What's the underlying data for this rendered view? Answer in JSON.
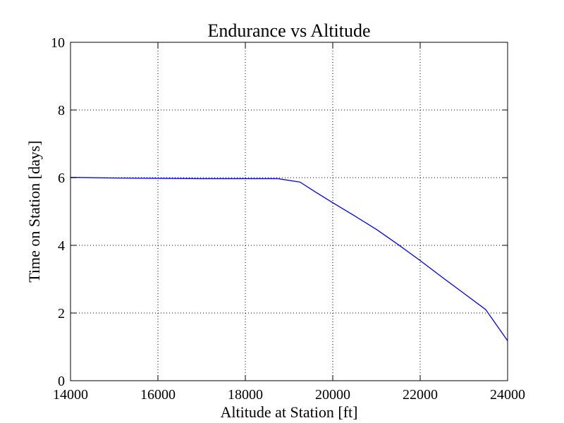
{
  "chart_data": {
    "type": "line",
    "title": "Endurance vs Altitude",
    "xlabel": "Altitude at Station [ft]",
    "ylabel": "Time on Station [days]",
    "xlim": [
      14000,
      24000
    ],
    "ylim": [
      0,
      10
    ],
    "xticks": [
      14000,
      16000,
      18000,
      20000,
      22000,
      24000
    ],
    "yticks": [
      0,
      2,
      4,
      6,
      8,
      10
    ],
    "grid": true,
    "series": [
      {
        "color": "#0000ff",
        "x": [
          14000,
          15000,
          16000,
          17000,
          18000,
          18750,
          19250,
          19600,
          20000,
          20500,
          21000,
          21500,
          22000,
          22500,
          23000,
          23500,
          24000
        ],
        "y": [
          6.01,
          5.99,
          5.98,
          5.97,
          5.97,
          5.97,
          5.87,
          5.58,
          5.26,
          4.87,
          4.47,
          4.02,
          3.55,
          3.06,
          2.58,
          2.1,
          1.18
        ]
      }
    ]
  }
}
